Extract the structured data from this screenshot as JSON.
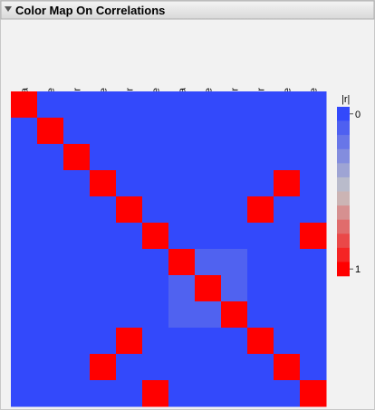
{
  "chart_data": {
    "type": "heatmap",
    "title": "Color Map On Correlations",
    "columns": [
      "Silica",
      "Silane",
      "Sulfur",
      "Silica*Silane",
      "Silica*Sulfur",
      "Sulfur*Silane",
      "Silica*Silica",
      "Silane*Silane",
      "Sulfur*Sulfur",
      "Silica*Sulfur",
      "Silica*Silane",
      "Sulfur*Silane"
    ],
    "values": [
      [
        1,
        0,
        0,
        0,
        0,
        0,
        0,
        0,
        0,
        0,
        0,
        0
      ],
      [
        0,
        1,
        0,
        0,
        0,
        0,
        0,
        0,
        0,
        0,
        0,
        0
      ],
      [
        0,
        0,
        1,
        0,
        0,
        0,
        0,
        0,
        0,
        0,
        0,
        0
      ],
      [
        0,
        0,
        0,
        1,
        0,
        0,
        0,
        0,
        0,
        0,
        1,
        0
      ],
      [
        0,
        0,
        0,
        0,
        1,
        0,
        0,
        0,
        0,
        1,
        0,
        0
      ],
      [
        0,
        0,
        0,
        0,
        0,
        1,
        0,
        0,
        0,
        0,
        0,
        1
      ],
      [
        0,
        0,
        0,
        0,
        0,
        0,
        1,
        0.1,
        0.1,
        0,
        0,
        0
      ],
      [
        0,
        0,
        0,
        0,
        0,
        0,
        0.1,
        1,
        0.1,
        0,
        0,
        0
      ],
      [
        0,
        0,
        0,
        0,
        0,
        0,
        0.1,
        0.1,
        1,
        0,
        0,
        0
      ],
      [
        0,
        0,
        0,
        0,
        1,
        0,
        0,
        0,
        0,
        1,
        0,
        0
      ],
      [
        0,
        0,
        0,
        1,
        0,
        0,
        0,
        0,
        0,
        0,
        1,
        0
      ],
      [
        0,
        0,
        0,
        0,
        0,
        1,
        0,
        0,
        0,
        0,
        0,
        1
      ]
    ],
    "legend_title": "|r|",
    "legend_lim": [
      0,
      1
    ],
    "legend_ticks": [
      0,
      1
    ],
    "colorscale": [
      [
        0,
        "#3349fb"
      ],
      [
        0.5,
        "#c6c6c6"
      ],
      [
        1,
        "#ff0000"
      ]
    ]
  }
}
